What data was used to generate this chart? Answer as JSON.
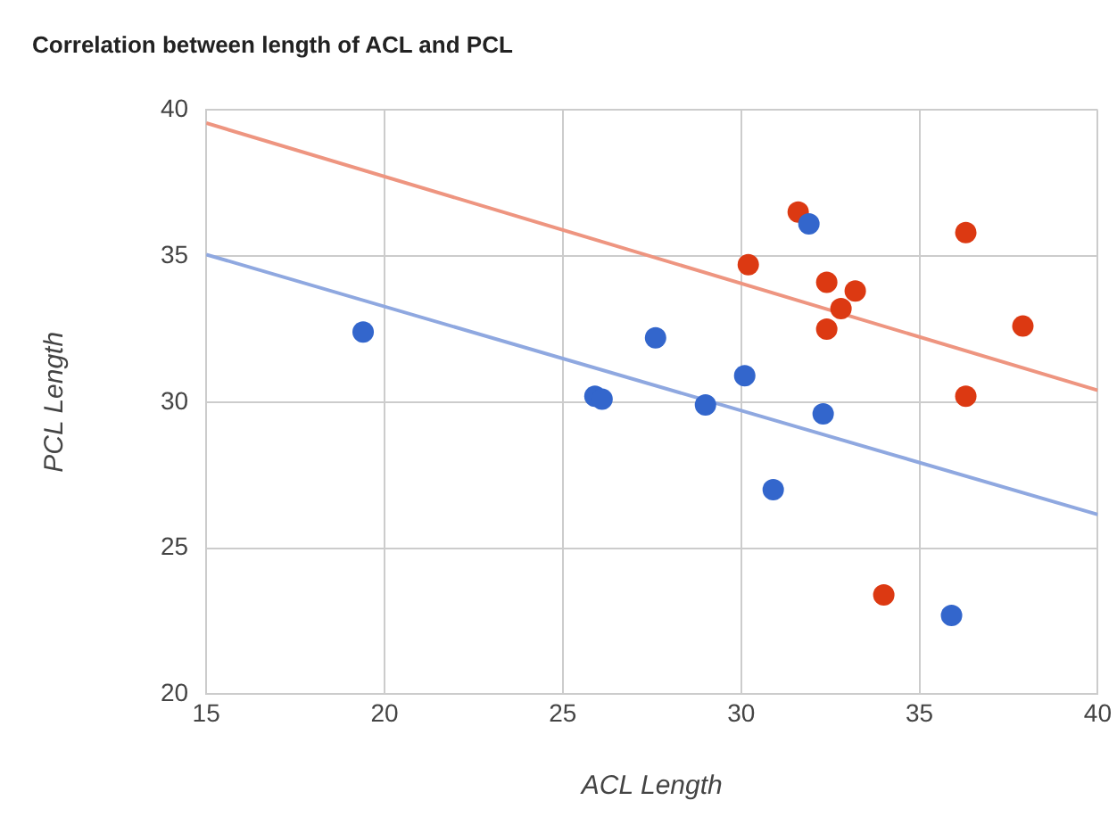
{
  "chart_data": {
    "type": "scatter",
    "title": "Correlation between length of ACL and PCL",
    "xlabel": "ACL Length",
    "ylabel": "PCL Length",
    "xlim": [
      15,
      40
    ],
    "xticks": [
      15,
      20,
      25,
      30,
      35,
      40
    ],
    "ylim": [
      20,
      40
    ],
    "yticks": [
      20,
      25,
      30,
      35,
      40
    ],
    "grid": true,
    "legend": false,
    "series": [
      {
        "type": "scatter",
        "marker": "circle",
        "color": "#3366cc",
        "x": [
          19.4,
          25.9,
          26.1,
          27.6,
          29.0,
          30.1,
          30.9,
          31.9,
          32.3,
          35.9
        ],
        "values": [
          32.4,
          30.2,
          30.1,
          32.2,
          29.9,
          30.9,
          27.0,
          36.1,
          29.6,
          22.7
        ]
      },
      {
        "type": "scatter",
        "marker": "circle",
        "color": "#dc3912",
        "x": [
          30.2,
          31.6,
          32.4,
          32.4,
          32.8,
          33.2,
          34.0,
          36.3,
          36.3,
          37.9
        ],
        "values": [
          34.7,
          36.5,
          34.1,
          32.5,
          33.2,
          33.8,
          23.4,
          35.8,
          30.2,
          32.6
        ]
      },
      {
        "type": "line",
        "marker": "none",
        "color": "#8fa8e0",
        "x": [
          15,
          40
        ],
        "values": [
          35.05,
          26.15
        ]
      },
      {
        "type": "line",
        "marker": "none",
        "color": "#ee9580",
        "x": [
          15,
          40
        ],
        "values": [
          39.55,
          30.4
        ]
      }
    ]
  }
}
